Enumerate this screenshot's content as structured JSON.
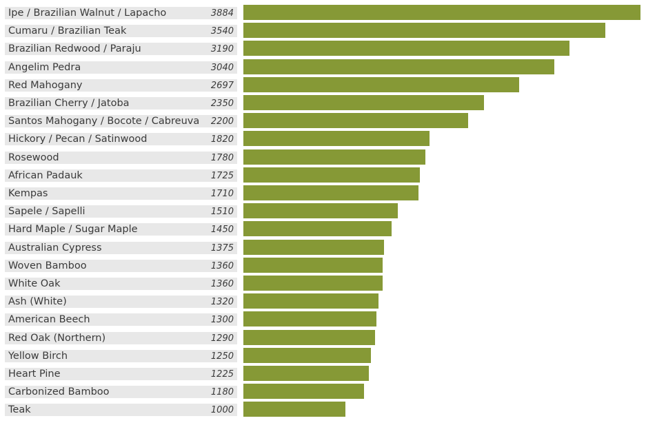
{
  "chart_data": {
    "type": "bar",
    "orientation": "horizontal",
    "categories": [
      "Ipe / Brazilian Walnut / Lapacho",
      "Cumaru / Brazilian Teak",
      "Brazilian Redwood / Paraju",
      "Angelim Pedra",
      "Red Mahogany",
      "Brazilian Cherry / Jatoba",
      "Santos Mahogany / Bocote / Cabreuva",
      "Hickory / Pecan / Satinwood",
      "Rosewood",
      "African Padauk",
      "Kempas",
      "Sapele / Sapelli",
      "Hard Maple / Sugar Maple",
      "Australian Cypress",
      "Woven Bamboo",
      "White Oak",
      "Ash (White)",
      "American Beech",
      "Red Oak (Northern)",
      "Yellow Birch",
      "Heart Pine",
      "Carbonized Bamboo",
      "Teak"
    ],
    "values": [
      3884,
      3540,
      3190,
      3040,
      2697,
      2350,
      2200,
      1820,
      1780,
      1725,
      1710,
      1510,
      1450,
      1375,
      1360,
      1360,
      1320,
      1300,
      1290,
      1250,
      1225,
      1180,
      1000
    ],
    "bar_color": "#869936",
    "label_background": "#e8e8e8",
    "xlim": [
      0,
      3884
    ],
    "grid": false,
    "legend": "none"
  }
}
